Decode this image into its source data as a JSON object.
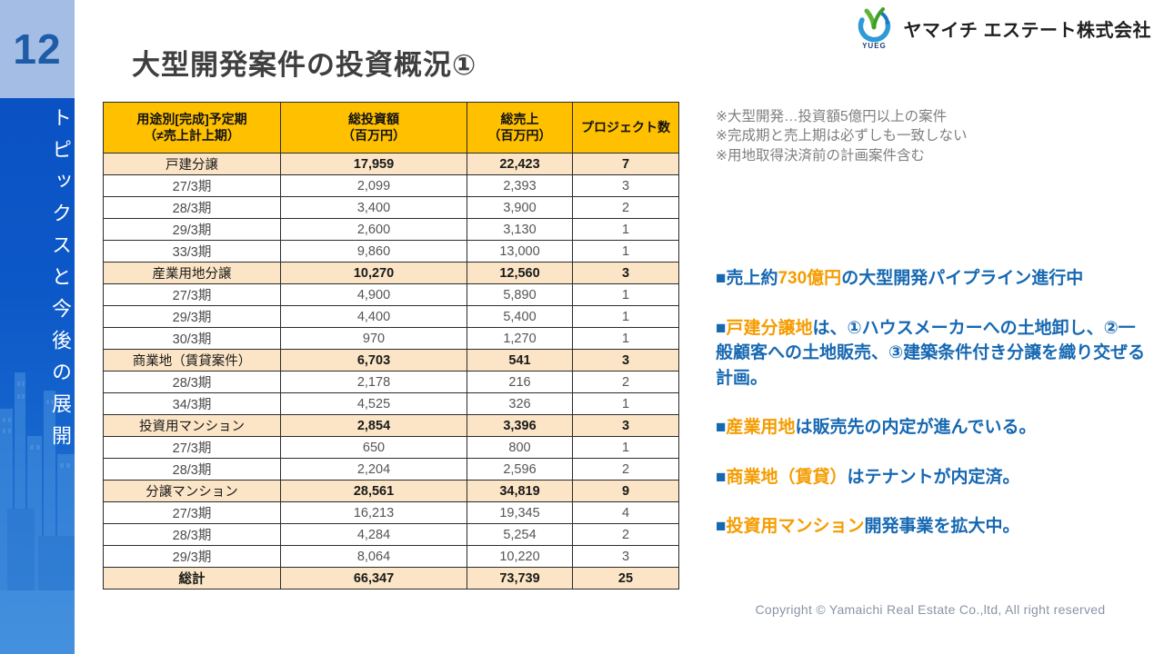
{
  "sidebar": {
    "page_number": "12",
    "vertical_title": "トピックスと今後の展開"
  },
  "header": {
    "title": "大型開発案件の投資概況①",
    "company_name": "ヤマイチ エステート株式会社",
    "logo_text": "YUEG"
  },
  "notes": [
    "※大型開発…投資額5億円以上の案件",
    "※完成期と売上期は必ずしも一致しない",
    "※用地取得決済前の計画案件含む"
  ],
  "table": {
    "columns": [
      [
        "用途別[完成]予定期",
        "（≠売上計上期）"
      ],
      [
        "総投資額",
        "（百万円）"
      ],
      [
        "総売上",
        "（百万円）"
      ],
      [
        "プロジェクト数"
      ]
    ],
    "rows": [
      {
        "type": "category",
        "cells": [
          "戸建分譲",
          "17,959",
          "22,423",
          "7"
        ]
      },
      {
        "type": "detail",
        "cells": [
          "27/3期",
          "2,099",
          "2,393",
          "3"
        ]
      },
      {
        "type": "detail",
        "cells": [
          "28/3期",
          "3,400",
          "3,900",
          "2"
        ]
      },
      {
        "type": "detail",
        "cells": [
          "29/3期",
          "2,600",
          "3,130",
          "1"
        ]
      },
      {
        "type": "detail",
        "cells": [
          "33/3期",
          "9,860",
          "13,000",
          "1"
        ]
      },
      {
        "type": "category",
        "cells": [
          "産業用地分譲",
          "10,270",
          "12,560",
          "3"
        ]
      },
      {
        "type": "detail",
        "cells": [
          "27/3期",
          "4,900",
          "5,890",
          "1"
        ]
      },
      {
        "type": "detail",
        "cells": [
          "29/3期",
          "4,400",
          "5,400",
          "1"
        ]
      },
      {
        "type": "detail",
        "cells": [
          "30/3期",
          "970",
          "1,270",
          "1"
        ]
      },
      {
        "type": "category",
        "cells": [
          "商業地（賃貸案件）",
          "6,703",
          "541",
          "3"
        ]
      },
      {
        "type": "detail",
        "cells": [
          "28/3期",
          "2,178",
          "216",
          "2"
        ]
      },
      {
        "type": "detail",
        "cells": [
          "34/3期",
          "4,525",
          "326",
          "1"
        ]
      },
      {
        "type": "category",
        "cells": [
          "投資用マンション",
          "2,854",
          "3,396",
          "3"
        ]
      },
      {
        "type": "detail",
        "cells": [
          "27/3期",
          "650",
          "800",
          "1"
        ]
      },
      {
        "type": "detail",
        "cells": [
          "28/3期",
          "2,204",
          "2,596",
          "2"
        ]
      },
      {
        "type": "category",
        "cells": [
          "分譲マンション",
          "28,561",
          "34,819",
          "9"
        ]
      },
      {
        "type": "detail",
        "cells": [
          "27/3期",
          "16,213",
          "19,345",
          "4"
        ]
      },
      {
        "type": "detail",
        "cells": [
          "28/3期",
          "4,284",
          "5,254",
          "2"
        ]
      },
      {
        "type": "detail",
        "cells": [
          "29/3期",
          "8,064",
          "10,220",
          "3"
        ]
      },
      {
        "type": "total",
        "cells": [
          "総計",
          "66,347",
          "73,739",
          "25"
        ]
      }
    ]
  },
  "bullets": [
    {
      "segments": [
        {
          "text": "■売上約",
          "color": "blue"
        },
        {
          "text": "730億円",
          "color": "orange"
        },
        {
          "text": "の大型開発パイプライン進行中",
          "color": "blue"
        }
      ]
    },
    {
      "segments": [
        {
          "text": "■",
          "color": "blue"
        },
        {
          "text": "戸建分譲地",
          "color": "orange"
        },
        {
          "text": "は、①ハウスメーカーへの土地卸し、②一般顧客への土地販売、③建築条件付き分譲を織り交ぜる計画。",
          "color": "blue"
        }
      ]
    },
    {
      "segments": [
        {
          "text": "■",
          "color": "blue"
        },
        {
          "text": "産業用地",
          "color": "orange"
        },
        {
          "text": "は販売先の内定が進んでいる。",
          "color": "blue"
        }
      ]
    },
    {
      "segments": [
        {
          "text": "■",
          "color": "blue"
        },
        {
          "text": "商業地（賃貸）",
          "color": "orange"
        },
        {
          "text": "はテナントが内定済。",
          "color": "blue"
        }
      ]
    },
    {
      "segments": [
        {
          "text": "■",
          "color": "blue"
        },
        {
          "text": "投資用マンション",
          "color": "orange"
        },
        {
          "text": "開発事業を拡大中。",
          "color": "blue"
        }
      ]
    }
  ],
  "footer": {
    "copyright": "Copyright © Yamaichi Real Estate Co.,ltd, All right reserved"
  },
  "colors": {
    "table_header_bg": "#ffc000",
    "table_category_bg": "#fbe5c6",
    "sidebar_top_bg": "#a4bde4",
    "sidebar_blue": "#0d58c8",
    "bullet_blue": "#1668b2",
    "bullet_orange": "#f59c00",
    "title_gray": "#3f3f3f",
    "note_gray": "#7f7f7f"
  }
}
